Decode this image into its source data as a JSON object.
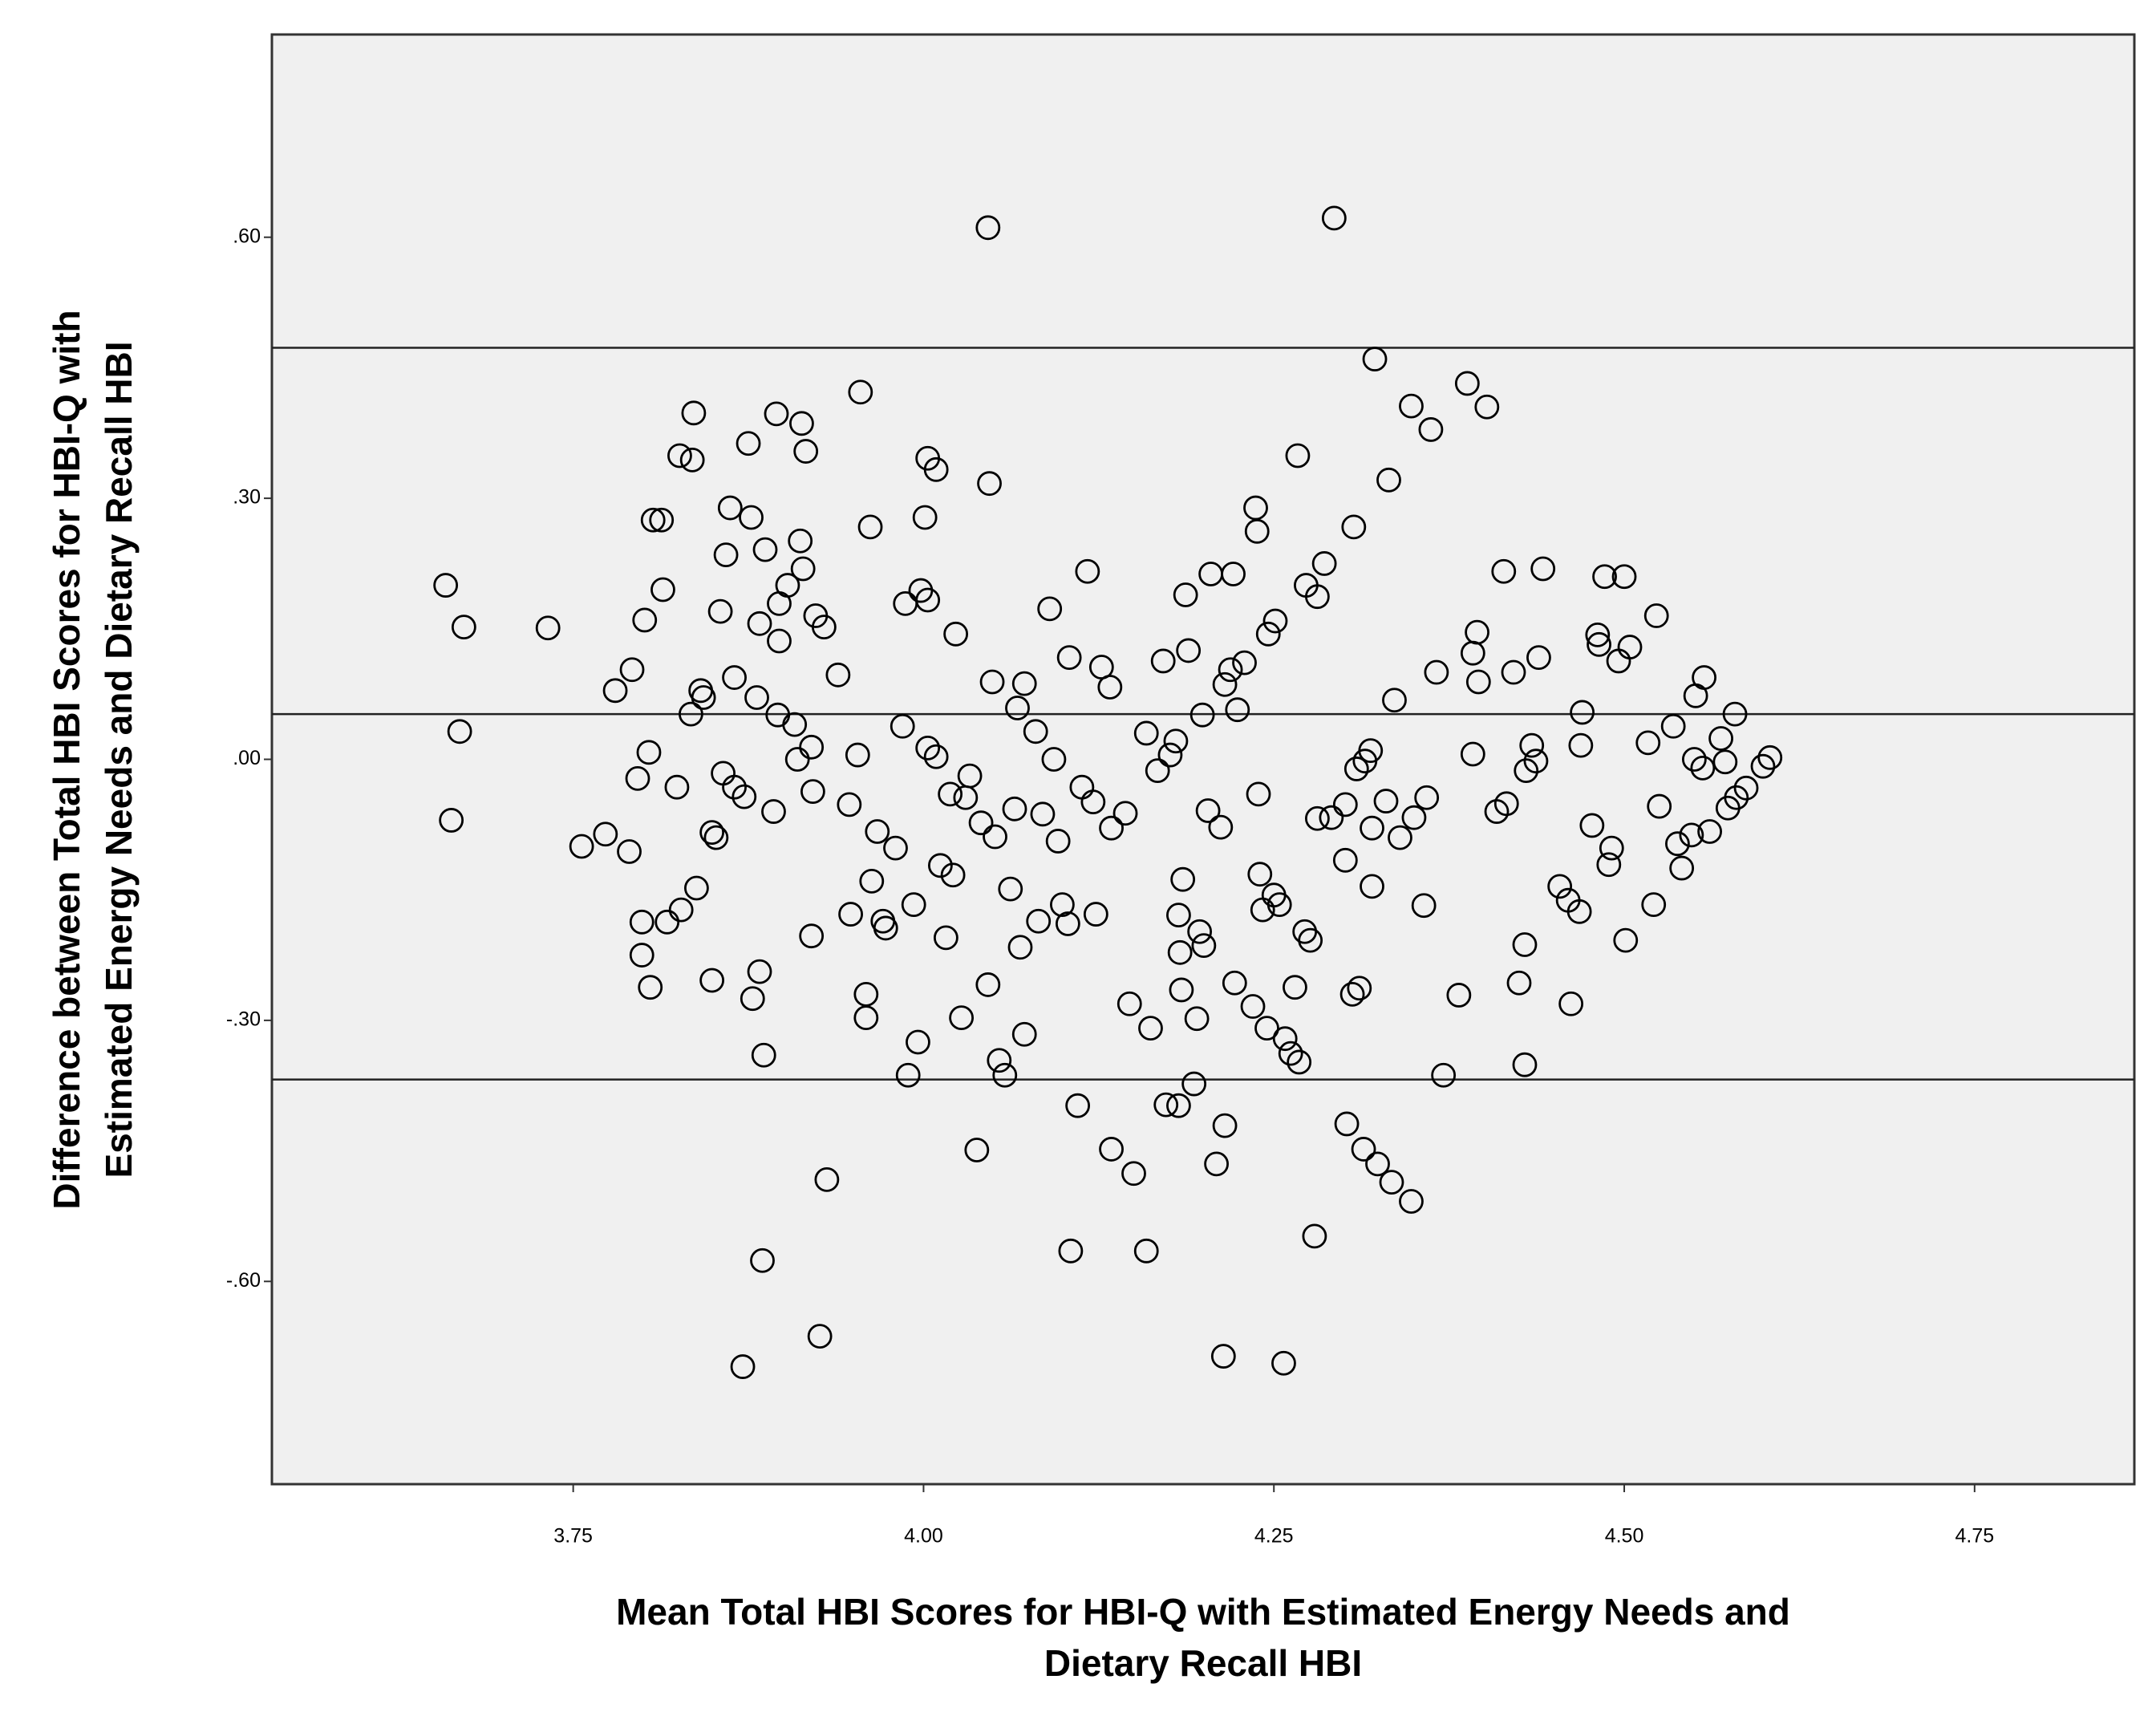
{
  "chart_data": {
    "type": "scatter",
    "x_label": [
      "Mean Total HBI Scores for HBI-Q with Estimated Energy Needs and",
      "Dietary Recall HBI"
    ],
    "y_label": [
      "Difference between Total HBI Scores for HBI-Q with",
      "Estimated Energy Needs and Dietary Recall HBI"
    ],
    "xlim": [
      3.535,
      4.864
    ],
    "ylim": [
      -0.833,
      0.833
    ],
    "xticks": [
      3.75,
      {
        "value": 4.0,
        "label": "4.00"
      },
      4.25,
      {
        "value": 4.5,
        "label": "4.50"
      },
      4.75
    ],
    "yticks": [
      {
        "value": 0.6,
        "label": ".60"
      },
      {
        "value": 0.3,
        "label": ".30"
      },
      {
        "value": 0,
        "label": ".00"
      },
      {
        "value": -0.3,
        "label": "-.30"
      },
      {
        "value": -0.6,
        "label": "-.60"
      }
    ],
    "hlines": [
      0.473,
      0.052,
      -0.368
    ],
    "color": "#000000",
    "background": "#f0f0f0",
    "x": [
      3.659,
      3.672,
      3.669,
      3.663,
      3.732,
      3.756,
      3.773,
      3.78,
      3.792,
      3.79,
      3.796,
      3.804,
      3.799,
      3.799,
      3.805,
      3.801,
      3.807,
      3.813,
      3.814,
      3.817,
      3.824,
      3.827,
      3.826,
      3.835,
      3.836,
      3.834,
      3.838,
      3.841,
      3.843,
      3.849,
      3.849,
      3.852,
      3.855,
      3.857,
      3.859,
      3.862,
      3.865,
      3.865,
      3.872,
      3.875,
      3.877,
      3.878,
      3.881,
      3.883,
      3.883,
      3.887,
      3.886,
      3.885,
      3.893,
      3.895,
      3.896,
      3.897,
      3.897,
      3.903,
      3.908,
      3.91,
      3.912,
      3.914,
      3.913,
      3.916,
      3.92,
      3.92,
      3.921,
      3.923,
      3.926,
      3.929,
      3.931,
      3.939,
      3.947,
      3.948,
      3.953,
      3.955,
      3.959,
      3.959,
      3.962,
      3.963,
      3.967,
      3.971,
      3.973,
      3.98,
      3.985,
      3.987,
      3.989,
      3.993,
      3.996,
      3.998,
      4.001,
      4.003,
      4.003,
      4.003,
      4.009,
      4.009,
      4.012,
      4.016,
      4.019,
      4.021,
      4.023,
      4.027,
      4.03,
      4.033,
      4.038,
      4.041,
      4.046,
      4.047,
      4.046,
      4.049,
      4.051,
      4.054,
      4.058,
      4.062,
      4.065,
      4.067,
      4.069,
      4.072,
      4.072,
      4.08,
      4.082,
      4.085,
      4.09,
      4.093,
      4.096,
      4.099,
      4.103,
      4.104,
      4.105,
      4.11,
      4.113,
      4.117,
      4.121,
      4.123,
      4.127,
      4.133,
      4.134,
      4.134,
      4.144,
      4.147,
      4.15,
      4.159,
      4.159,
      4.162,
      4.167,
      4.171,
      4.173,
      4.176,
      4.18,
      4.182,
      4.182,
      4.183,
      4.184,
      4.185,
      4.187,
      4.189,
      4.193,
      4.195,
      4.197,
      4.199,
      4.2,
      4.203,
      4.205,
      4.209,
      4.212,
      4.214,
      4.215,
      4.215,
      4.219,
      4.221,
      4.222,
      4.224,
      4.229,
      4.235,
      4.237,
      4.238,
      4.239,
      4.24,
      4.242,
      4.245,
      4.246,
      4.25,
      4.251,
      4.254,
      4.257,
      4.258,
      4.262,
      4.265,
      4.267,
      4.268,
      4.272,
      4.273,
      4.276,
      4.279,
      4.281,
      4.281,
      4.286,
      4.291,
      4.293,
      4.301,
      4.301,
      4.302,
      4.306,
      4.307,
      4.309,
      4.311,
      4.314,
      4.315,
      4.319,
      4.32,
      4.32,
      4.322,
      4.324,
      4.33,
      4.332,
      4.334,
      4.336,
      4.34,
      4.348,
      4.348,
      4.35,
      4.357,
      4.359,
      4.362,
      4.366,
      4.371,
      4.382,
      4.388,
      4.392,
      4.392,
      4.395,
      4.396,
      4.402,
      4.409,
      4.414,
      4.416,
      4.421,
      4.425,
      4.429,
      4.429,
      4.43,
      4.434,
      4.437,
      4.439,
      4.442,
      4.454,
      4.46,
      4.462,
      4.468,
      4.469,
      4.47,
      4.477,
      4.481,
      4.482,
      4.486,
      4.489,
      4.491,
      4.496,
      4.5,
      4.501,
      4.504,
      4.517,
      4.521,
      4.523,
      4.525,
      4.535,
      4.538,
      4.541,
      4.548,
      4.55,
      4.551,
      4.556,
      4.557,
      4.561,
      4.569,
      4.572,
      4.574,
      4.579,
      4.58,
      4.587,
      4.599,
      4.604,
      3.871
    ],
    "values": [
      0.2,
      0.152,
      0.032,
      -0.07,
      0.151,
      -0.1,
      -0.086,
      0.079,
      0.103,
      -0.106,
      -0.022,
      0.008,
      -0.187,
      -0.225,
      -0.262,
      0.16,
      0.275,
      0.275,
      0.195,
      -0.187,
      -0.032,
      -0.173,
      0.349,
      0.344,
      0.398,
      0.052,
      -0.148,
      0.079,
      0.071,
      -0.084,
      -0.254,
      -0.09,
      0.17,
      -0.016,
      0.235,
      0.289,
      -0.032,
      0.094,
      -0.043,
      0.363,
      0.278,
      -0.275,
      0.071,
      -0.244,
      0.156,
      0.241,
      -0.34,
      -0.576,
      -0.06,
      0.397,
      0.051,
      0.136,
      0.179,
      0.2,
      0.04,
      0.0,
      0.251,
      0.219,
      0.386,
      0.354,
      0.014,
      -0.203,
      -0.037,
      0.165,
      -0.663,
      0.152,
      -0.483,
      0.097,
      -0.052,
      -0.178,
      0.005,
      0.422,
      -0.27,
      -0.297,
      0.267,
      -0.14,
      -0.083,
      -0.186,
      -0.194,
      -0.102,
      0.038,
      0.179,
      -0.363,
      -0.167,
      -0.325,
      0.194,
      0.278,
      0.346,
      0.013,
      0.183,
      0.333,
      0.003,
      -0.122,
      -0.205,
      -0.04,
      -0.133,
      0.144,
      -0.297,
      -0.044,
      -0.019,
      -0.449,
      -0.073,
      0.611,
      0.317,
      -0.259,
      0.089,
      -0.089,
      -0.346,
      -0.363,
      -0.149,
      -0.057,
      0.059,
      -0.216,
      0.087,
      -0.316,
      0.032,
      -0.186,
      -0.063,
      0.173,
      0.0,
      -0.094,
      -0.167,
      -0.189,
      0.117,
      -0.565,
      -0.398,
      -0.032,
      0.216,
      -0.049,
      -0.178,
      0.106,
      0.083,
      -0.448,
      -0.079,
      -0.062,
      -0.281,
      -0.476,
      0.03,
      -0.565,
      -0.309,
      -0.013,
      0.113,
      -0.397,
      0.005,
      0.021,
      -0.398,
      -0.179,
      -0.222,
      -0.265,
      -0.138,
      0.189,
      0.125,
      -0.373,
      -0.298,
      -0.198,
      0.051,
      -0.214,
      -0.059,
      0.213,
      -0.465,
      -0.078,
      -0.686,
      -0.421,
      0.086,
      0.103,
      0.213,
      -0.257,
      0.057,
      0.111,
      -0.284,
      0.289,
      0.262,
      -0.04,
      -0.132,
      -0.173,
      -0.309,
      0.144,
      -0.156,
      0.159,
      -0.167,
      -0.694,
      -0.321,
      -0.338,
      -0.262,
      0.349,
      -0.348,
      -0.198,
      0.2,
      -0.208,
      -0.548,
      0.187,
      -0.068,
      0.225,
      -0.067,
      0.622,
      -0.116,
      -0.052,
      -0.419,
      -0.27,
      0.267,
      -0.011,
      -0.263,
      -0.448,
      -0.002,
      0.01,
      -0.146,
      -0.079,
      0.46,
      -0.465,
      -0.048,
      0.321,
      -0.486,
      0.068,
      -0.09,
      0.406,
      -0.508,
      -0.067,
      -0.168,
      -0.044,
      0.379,
      0.1,
      -0.363,
      -0.271,
      0.432,
      0.122,
      0.006,
      0.146,
      0.089,
      0.405,
      -0.06,
      0.216,
      -0.051,
      0.1,
      -0.257,
      -0.213,
      -0.351,
      -0.013,
      0.016,
      -0.002,
      0.117,
      0.219,
      -0.146,
      -0.162,
      -0.281,
      -0.175,
      0.016,
      0.054,
      -0.076,
      0.143,
      0.132,
      0.21,
      -0.121,
      -0.102,
      0.113,
      0.21,
      -0.208,
      0.129,
      0.019,
      -0.167,
      0.165,
      -0.054,
      0.038,
      -0.097,
      -0.125,
      -0.087,
      0.0,
      0.073,
      -0.01,
      0.094,
      -0.083,
      0.024,
      -0.003,
      -0.056,
      0.052,
      -0.044,
      -0.033,
      -0.008,
      0.002,
      -0.698
    ]
  }
}
